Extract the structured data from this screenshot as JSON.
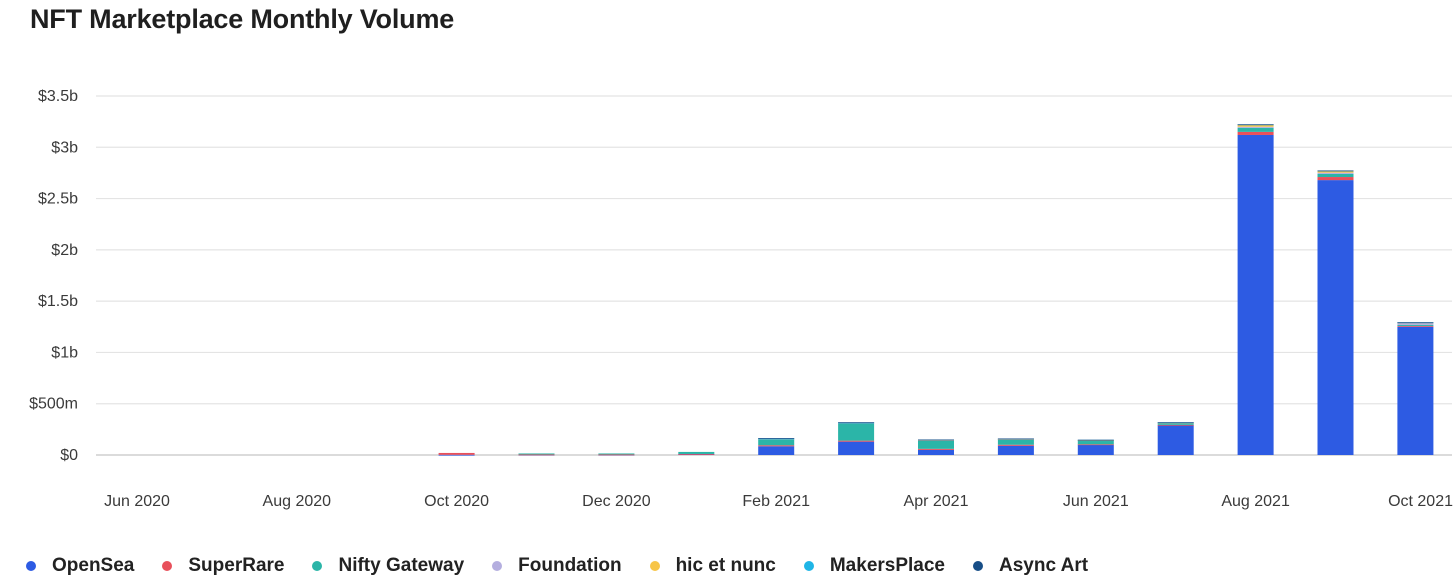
{
  "title": "NFT Marketplace Monthly Volume",
  "chart_data": {
    "type": "bar",
    "stacked": true,
    "title": "NFT Marketplace Monthly Volume",
    "ylim": [
      0,
      3500
    ],
    "y_unit": "millions USD",
    "y_ticks": [
      {
        "value": 0,
        "label": "$0"
      },
      {
        "value": 500,
        "label": "$500m"
      },
      {
        "value": 1000,
        "label": "$1b"
      },
      {
        "value": 1500,
        "label": "$1.5b"
      },
      {
        "value": 2000,
        "label": "$2b"
      },
      {
        "value": 2500,
        "label": "$2.5b"
      },
      {
        "value": 3000,
        "label": "$3b"
      },
      {
        "value": 3500,
        "label": "$3.5b"
      }
    ],
    "categories": [
      "Jun 2020",
      "Jul 2020",
      "Aug 2020",
      "Sep 2020",
      "Oct 2020",
      "Nov 2020",
      "Dec 2020",
      "Jan 2021",
      "Feb 2021",
      "Mar 2021",
      "Apr 2021",
      "May 2021",
      "Jun 2021",
      "Jul 2021",
      "Aug 2021",
      "Sep 2021",
      "Oct 2021"
    ],
    "x_tick_labels": [
      "Jun 2020",
      "Aug 2020",
      "Oct 2020",
      "Dec 2020",
      "Feb 2021",
      "Apr 2021",
      "Jun 2021",
      "Aug 2021",
      "Oct 2021"
    ],
    "legend_position": "bottom",
    "grid": true,
    "series": [
      {
        "name": "OpenSea",
        "color": "#2d5be3",
        "values": [
          0,
          0,
          0,
          0,
          2,
          3,
          3,
          8,
          85,
          130,
          50,
          90,
          100,
          290,
          3120,
          2680,
          1250
        ]
      },
      {
        "name": "SuperRare",
        "color": "#e8505b",
        "values": [
          0,
          0,
          0,
          0,
          18,
          2,
          2,
          2,
          10,
          10,
          10,
          10,
          4,
          4,
          30,
          30,
          8
        ]
      },
      {
        "name": "Nifty Gateway",
        "color": "#2bb5a8",
        "values": [
          0,
          0,
          0,
          0,
          0,
          10,
          10,
          20,
          60,
          170,
          80,
          50,
          35,
          15,
          40,
          30,
          10
        ]
      },
      {
        "name": "Foundation",
        "color": "#b4aedf",
        "values": [
          0,
          0,
          0,
          0,
          0,
          0,
          0,
          0,
          5,
          5,
          5,
          5,
          5,
          5,
          10,
          12,
          20
        ]
      },
      {
        "name": "hic et nunc",
        "color": "#f7c548",
        "values": [
          0,
          0,
          0,
          0,
          0,
          0,
          0,
          0,
          0,
          0,
          2,
          2,
          2,
          2,
          20,
          18,
          4
        ]
      },
      {
        "name": "MakersPlace",
        "color": "#1fb5e6",
        "values": [
          0,
          0,
          0,
          0,
          0,
          0,
          0,
          0,
          3,
          3,
          3,
          3,
          2,
          2,
          3,
          3,
          1
        ]
      },
      {
        "name": "Async Art",
        "color": "#174e87",
        "values": [
          0,
          0,
          0,
          0,
          0,
          0,
          0,
          0,
          1,
          1,
          1,
          1,
          1,
          1,
          1,
          1,
          1
        ]
      }
    ]
  }
}
